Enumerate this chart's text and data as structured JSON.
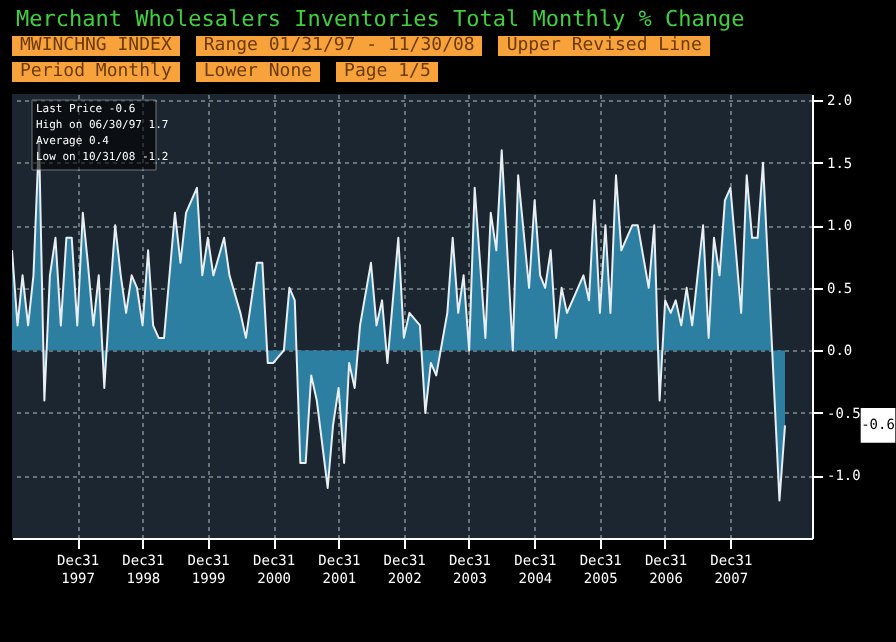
{
  "chart_data": {
    "type": "area",
    "title": "Merchant Wholesalers Inventories Total Monthly % Change",
    "annotations": [
      "MWINCHNG INDEX",
      "Range 01/31/97 - 11/30/08",
      "Upper Revised Line",
      "Period Monthly",
      "Lower None",
      "Page 1/5",
      "Last Price -0.6",
      "High on 06/30/97 1.7",
      "Average 0.4",
      "Low on 10/31/08 -1.2",
      "-0.6"
    ],
    "series": [
      {
        "color": "#2c7fa0",
        "x": [
          "1997-01",
          "1997-02",
          "1997-03",
          "1997-04",
          "1997-05",
          "1997-06",
          "1997-07",
          "1997-08",
          "1997-09",
          "1997-10",
          "1997-11",
          "1997-12",
          "1998-01",
          "1998-02",
          "1998-03",
          "1998-04",
          "1998-05",
          "1998-06",
          "1998-07",
          "1998-08",
          "1998-09",
          "1998-10",
          "1998-11",
          "1998-12",
          "1999-01",
          "1999-02",
          "1999-03",
          "1999-04",
          "1999-05",
          "1999-07",
          "1999-08",
          "1999-09",
          "1999-11",
          "1999-12",
          "2000-01",
          "2000-02",
          "2000-04",
          "2000-05",
          "2000-07",
          "2000-08",
          "2000-10",
          "2000-11",
          "2000-12",
          "2001-01",
          "2001-03",
          "2001-04",
          "2001-05",
          "2001-06",
          "2001-07",
          "2001-08",
          "2001-09",
          "2001-11",
          "2001-12",
          "2002-01",
          "2002-02",
          "2002-03",
          "2002-04",
          "2002-05",
          "2002-07",
          "2002-08",
          "2002-09",
          "2002-10",
          "2002-12",
          "2003-01",
          "2003-02",
          "2003-04",
          "2003-05",
          "2003-06",
          "2003-07",
          "2003-09",
          "2003-10",
          "2003-11",
          "2003-12",
          "2004-01",
          "2004-02",
          "2004-04",
          "2004-05",
          "2004-06",
          "2004-07",
          "2004-09",
          "2004-10",
          "2004-12",
          "2005-01",
          "2005-02",
          "2005-03",
          "2005-04",
          "2005-05",
          "2005-06",
          "2005-07",
          "2005-08",
          "2005-10",
          "2005-11",
          "2005-12",
          "2006-01",
          "2006-02",
          "2006-03",
          "2006-04",
          "2006-05",
          "2006-07",
          "2006-08",
          "2006-10",
          "2006-11",
          "2006-12",
          "2007-01",
          "2007-02",
          "2007-03",
          "2007-04",
          "2007-05",
          "2007-06",
          "2007-08",
          "2007-09",
          "2007-10",
          "2007-11",
          "2007-12",
          "2008-01",
          "2008-03",
          "2008-04",
          "2008-05",
          "2008-06",
          "2008-07",
          "2008-08",
          "2008-10",
          "2008-11"
        ],
        "values": [
          0.8,
          0.2,
          0.6,
          0.2,
          0.6,
          1.7,
          -0.4,
          0.6,
          0.9,
          0.2,
          0.9,
          0.9,
          0.2,
          1.1,
          0.7,
          0.2,
          0.6,
          -0.3,
          0.4,
          1.0,
          0.6,
          0.3,
          0.6,
          0.5,
          0.2,
          0.8,
          0.2,
          0.1,
          0.1,
          1.1,
          0.7,
          1.1,
          1.3,
          0.6,
          0.9,
          0.6,
          0.9,
          0.6,
          0.3,
          0.1,
          0.7,
          0.7,
          -0.1,
          -0.1,
          0.0,
          0.5,
          0.4,
          -0.9,
          -0.9,
          -0.2,
          -0.4,
          -1.1,
          -0.6,
          -0.3,
          -0.9,
          -0.1,
          -0.3,
          0.2,
          0.7,
          0.2,
          0.4,
          -0.1,
          0.9,
          0.1,
          0.3,
          0.2,
          -0.5,
          -0.1,
          -0.2,
          0.3,
          0.9,
          0.3,
          0.6,
          0.0,
          1.3,
          0.1,
          1.1,
          0.8,
          1.6,
          0.0,
          1.4,
          0.5,
          1.2,
          0.6,
          0.5,
          0.8,
          0.1,
          0.5,
          0.3,
          0.4,
          0.6,
          0.4,
          1.2,
          0.3,
          1.0,
          0.3,
          1.4,
          0.8,
          1.0,
          1.0,
          0.5,
          1.0,
          -0.4,
          0.4,
          0.3,
          0.4,
          0.2,
          0.5,
          0.2,
          1.0,
          0.1,
          0.9,
          0.6,
          1.2,
          1.3,
          0.3,
          1.4,
          0.9,
          0.9,
          1.5,
          0.6,
          -1.2,
          -0.6
        ]
      }
    ],
    "xlim": [
      "1997-01",
      "2009-04"
    ],
    "xticks": [
      {
        "value": "1997-12-31",
        "label": "Dec31 1997"
      },
      {
        "value": "1998-12-31",
        "label": "Dec31 1998"
      },
      {
        "value": "1999-12-31",
        "label": "Dec31 1999"
      },
      {
        "value": "2000-12-31",
        "label": "Dec31 2000"
      },
      {
        "value": "2001-12-31",
        "label": "Dec31 2001"
      },
      {
        "value": "2002-12-31",
        "label": "Dec31 2002"
      },
      {
        "value": "2003-12-31",
        "label": "Dec31 2003"
      },
      {
        "value": "2004-12-31",
        "label": "Dec31 2004"
      },
      {
        "value": "2005-12-31",
        "label": "Dec31 2005"
      },
      {
        "value": "2006-12-31",
        "label": "Dec31 2006"
      },
      {
        "value": "2007-12-31",
        "label": "Dec31 2007"
      }
    ],
    "ylim": [
      -1.5,
      2.05
    ],
    "yticks": [
      {
        "value": -1,
        "label": "-1.0"
      },
      {
        "value": -0.5,
        "label": "-0.5"
      },
      {
        "value": 0,
        "label": "0.0"
      },
      {
        "value": 0.5,
        "label": "0.5"
      },
      {
        "value": 1,
        "label": "1.0"
      },
      {
        "value": 1.5,
        "label": "1.5"
      },
      {
        "value": 2,
        "label": "2.0"
      }
    ],
    "grid": true
  }
}
